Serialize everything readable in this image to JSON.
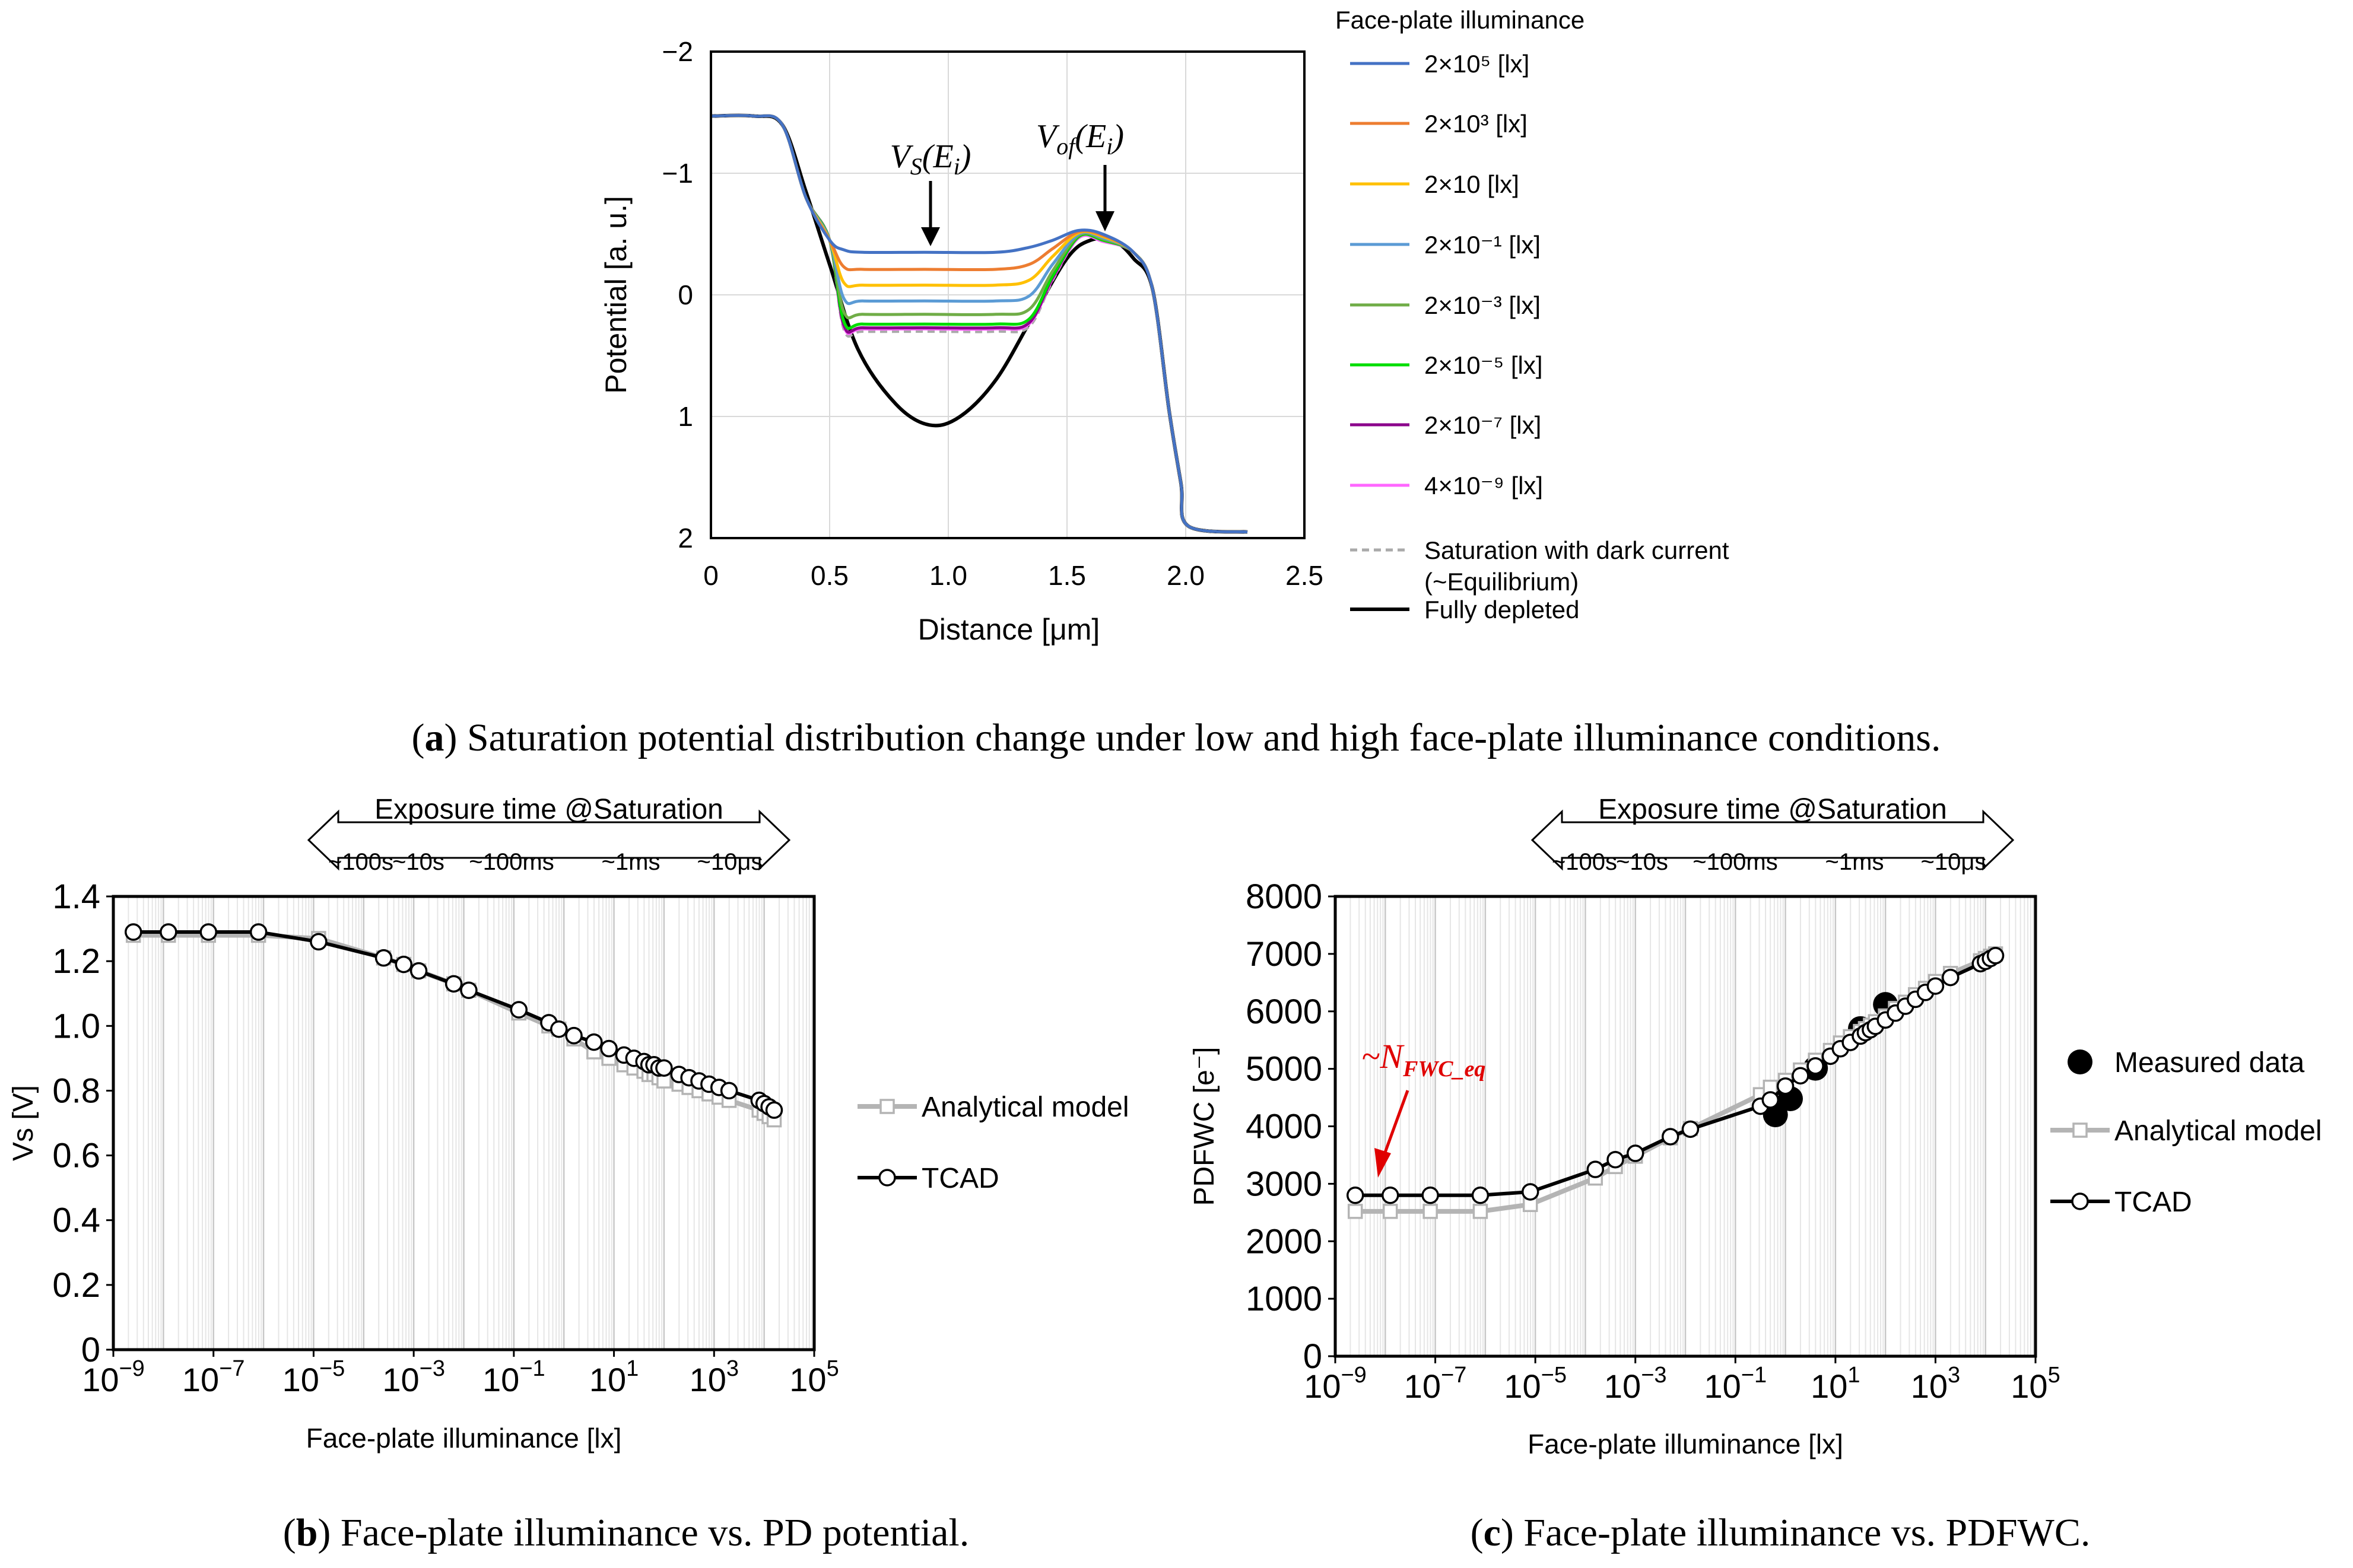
{
  "chart_data": [
    {
      "id": "a",
      "type": "line",
      "xlabel": "Distance [μm]",
      "ylabel": "Potential [a. u.]",
      "xlim": [
        0,
        2.5
      ],
      "ylim": [
        2,
        -2
      ],
      "xticks": [
        "0",
        "0.5",
        "1.0",
        "1.5",
        "2.0",
        "2.5"
      ],
      "yticks": [
        "−2",
        "−1",
        "0",
        "1",
        "2"
      ],
      "legend_title": "Face-plate illuminance",
      "annotations": {
        "vs": "V_S(E_i)",
        "vof": "V_of(E_i)"
      },
      "series": [
        {
          "name": "2×10⁵ [lx]",
          "color": "#4472c4",
          "plateau": -0.35,
          "peak": -0.53
        },
        {
          "name": "2×10³ [lx]",
          "color": "#ed7d31",
          "plateau": -0.21,
          "peak": -0.52
        },
        {
          "name": "2×10 [lx]",
          "color": "#ffc000",
          "plateau": -0.08,
          "peak": -0.51
        },
        {
          "name": "2×10⁻¹ [lx]",
          "color": "#5b9bd5",
          "plateau": 0.05,
          "peak": -0.5
        },
        {
          "name": "2×10⁻³ [lx]",
          "color": "#70ad47",
          "plateau": 0.16,
          "peak": -0.49
        },
        {
          "name": "2×10⁻⁵ [lx]",
          "color": "#00dd00",
          "plateau": 0.24,
          "peak": -0.48
        },
        {
          "name": "2×10⁻⁷ [lx]",
          "color": "#8b008b",
          "plateau": 0.27,
          "peak": -0.48
        },
        {
          "name": "4×10⁻⁹ [lx]",
          "color": "#ff66ff",
          "plateau": 0.28,
          "peak": -0.47
        },
        {
          "name": "Saturation with dark current",
          "name2": "(~Equilibrium)",
          "color": "#aaaaaa",
          "dashed": true,
          "plateau": 0.3,
          "peak": -0.47
        },
        {
          "name": "Fully depleted",
          "color": "#000000",
          "depleted": true
        }
      ],
      "caption_letter": "a",
      "caption_text": ") Saturation potential distribution change under low and high face-plate illuminance conditions."
    },
    {
      "id": "b",
      "type": "line",
      "xscale": "log",
      "xlabel": "Face-plate illuminance [lx]",
      "ylabel": "Vs [V]",
      "xlim_exp": [
        -9,
        5
      ],
      "ylim": [
        0,
        1.4
      ],
      "xticks": [
        {
          "base": "10",
          "exp": "−9"
        },
        {
          "base": "10",
          "exp": "−7"
        },
        {
          "base": "10",
          "exp": "−5"
        },
        {
          "base": "10",
          "exp": "−3"
        },
        {
          "base": "10",
          "exp": "−1"
        },
        {
          "base": "10",
          "exp": "1"
        },
        {
          "base": "10",
          "exp": "3"
        },
        {
          "base": "10",
          "exp": "5"
        }
      ],
      "yticks": [
        "0",
        "0.2",
        "0.4",
        "0.6",
        "0.8",
        "1.0",
        "1.2",
        "1.4"
      ],
      "exposure_label": "Exposure time @Saturation",
      "exposure_ticks": [
        "~100s",
        "~10s",
        "~100ms",
        "~1ms",
        "~10μs"
      ],
      "series": [
        {
          "name": "Analytical model",
          "color": "#b4b4b4",
          "marker": "square",
          "points": [
            [
              -8.6,
              1.28
            ],
            [
              -7.9,
              1.28
            ],
            [
              -7.1,
              1.28
            ],
            [
              -6.1,
              1.28
            ],
            [
              -4.9,
              1.27
            ],
            [
              -3.6,
              1.21
            ],
            [
              -3.2,
              1.19
            ],
            [
              -2.9,
              1.17
            ],
            [
              -2.2,
              1.13
            ],
            [
              -1.9,
              1.11
            ],
            [
              -0.9,
              1.04
            ],
            [
              -0.3,
              1.0
            ],
            [
              -0.1,
              0.99
            ],
            [
              0.2,
              0.96
            ],
            [
              0.6,
              0.92
            ],
            [
              0.9,
              0.9
            ],
            [
              1.2,
              0.88
            ],
            [
              1.4,
              0.87
            ],
            [
              1.6,
              0.86
            ],
            [
              1.7,
              0.85
            ],
            [
              1.8,
              0.85
            ],
            [
              1.9,
              0.84
            ],
            [
              2.0,
              0.83
            ],
            [
              2.3,
              0.82
            ],
            [
              2.5,
              0.81
            ],
            [
              2.7,
              0.8
            ],
            [
              2.9,
              0.79
            ],
            [
              3.1,
              0.78
            ],
            [
              3.3,
              0.77
            ],
            [
              3.9,
              0.74
            ],
            [
              4.0,
              0.73
            ],
            [
              4.1,
              0.72
            ],
            [
              4.2,
              0.71
            ]
          ]
        },
        {
          "name": "TCAD",
          "color": "#000000",
          "marker": "circle",
          "points": [
            [
              -8.6,
              1.29
            ],
            [
              -7.9,
              1.29
            ],
            [
              -7.1,
              1.29
            ],
            [
              -6.1,
              1.29
            ],
            [
              -4.9,
              1.26
            ],
            [
              -3.6,
              1.21
            ],
            [
              -3.2,
              1.19
            ],
            [
              -2.9,
              1.17
            ],
            [
              -2.2,
              1.13
            ],
            [
              -1.9,
              1.11
            ],
            [
              -0.9,
              1.05
            ],
            [
              -0.3,
              1.01
            ],
            [
              -0.1,
              0.99
            ],
            [
              0.2,
              0.97
            ],
            [
              0.6,
              0.95
            ],
            [
              0.9,
              0.93
            ],
            [
              1.2,
              0.91
            ],
            [
              1.4,
              0.9
            ],
            [
              1.6,
              0.89
            ],
            [
              1.7,
              0.88
            ],
            [
              1.8,
              0.88
            ],
            [
              1.9,
              0.87
            ],
            [
              2.0,
              0.87
            ],
            [
              2.3,
              0.85
            ],
            [
              2.5,
              0.84
            ],
            [
              2.7,
              0.83
            ],
            [
              2.9,
              0.82
            ],
            [
              3.1,
              0.81
            ],
            [
              3.3,
              0.8
            ],
            [
              3.9,
              0.77
            ],
            [
              4.0,
              0.76
            ],
            [
              4.1,
              0.75
            ],
            [
              4.2,
              0.74
            ]
          ]
        }
      ],
      "caption_letter": "b",
      "caption_text": ") Face-plate illuminance vs. PD potential."
    },
    {
      "id": "c",
      "type": "line",
      "xscale": "log",
      "xlabel": "Face-plate illuminance [lx]",
      "ylabel": "PDFWC [e⁻]",
      "xlim_exp": [
        -9,
        5
      ],
      "ylim": [
        0,
        8000
      ],
      "xticks": [
        {
          "base": "10",
          "exp": "−9"
        },
        {
          "base": "10",
          "exp": "−7"
        },
        {
          "base": "10",
          "exp": "−5"
        },
        {
          "base": "10",
          "exp": "−3"
        },
        {
          "base": "10",
          "exp": "−1"
        },
        {
          "base": "10",
          "exp": "1"
        },
        {
          "base": "10",
          "exp": "3"
        },
        {
          "base": "10",
          "exp": "5"
        }
      ],
      "yticks": [
        "0",
        "1000",
        "2000",
        "3000",
        "4000",
        "5000",
        "6000",
        "7000",
        "8000"
      ],
      "exposure_label": "Exposure time @Saturation",
      "exposure_ticks": [
        "~100s",
        "~10s",
        "~100ms",
        "~1ms",
        "~10μs"
      ],
      "annotation": {
        "prefix": "~N",
        "sub": "FWC_eq"
      },
      "series": [
        {
          "name": "Measured data",
          "color": "#000000",
          "marker": "filled-circle",
          "points": [
            [
              -0.2,
              4200
            ],
            [
              0.1,
              4480
            ],
            [
              0.6,
              5010
            ],
            [
              1.5,
              5700
            ],
            [
              2.0,
              6120
            ]
          ]
        },
        {
          "name": "Analytical model",
          "color": "#b4b4b4",
          "marker": "square",
          "points": [
            [
              -8.6,
              2520
            ],
            [
              -7.9,
              2520
            ],
            [
              -7.1,
              2520
            ],
            [
              -6.1,
              2520
            ],
            [
              -5.1,
              2640
            ],
            [
              -3.8,
              3100
            ],
            [
              -3.4,
              3300
            ],
            [
              -3.0,
              3480
            ],
            [
              -2.3,
              3800
            ],
            [
              -1.9,
              3960
            ],
            [
              -0.5,
              4550
            ],
            [
              -0.3,
              4680
            ],
            [
              0,
              4800
            ],
            [
              0.3,
              4980
            ],
            [
              0.6,
              5150
            ],
            [
              0.9,
              5320
            ],
            [
              1.1,
              5450
            ],
            [
              1.3,
              5560
            ],
            [
              1.5,
              5650
            ],
            [
              1.6,
              5700
            ],
            [
              1.7,
              5760
            ],
            [
              1.8,
              5820
            ],
            [
              2.0,
              5920
            ],
            [
              2.2,
              6050
            ],
            [
              2.4,
              6160
            ],
            [
              2.6,
              6290
            ],
            [
              2.8,
              6400
            ],
            [
              3.0,
              6520
            ],
            [
              3.3,
              6660
            ],
            [
              3.9,
              6880
            ],
            [
              4.0,
              6920
            ],
            [
              4.1,
              6960
            ],
            [
              4.2,
              7000
            ]
          ]
        },
        {
          "name": "TCAD",
          "color": "#000000",
          "marker": "circle",
          "points": [
            [
              -8.6,
              2800
            ],
            [
              -7.9,
              2800
            ],
            [
              -7.1,
              2800
            ],
            [
              -6.1,
              2800
            ],
            [
              -5.1,
              2860
            ],
            [
              -3.8,
              3250
            ],
            [
              -3.4,
              3420
            ],
            [
              -3.0,
              3530
            ],
            [
              -2.3,
              3820
            ],
            [
              -1.9,
              3950
            ],
            [
              -0.5,
              4350
            ],
            [
              -0.3,
              4460
            ],
            [
              0,
              4700
            ],
            [
              0.3,
              4880
            ],
            [
              0.6,
              5050
            ],
            [
              0.9,
              5220
            ],
            [
              1.1,
              5350
            ],
            [
              1.3,
              5460
            ],
            [
              1.5,
              5570
            ],
            [
              1.6,
              5630
            ],
            [
              1.7,
              5680
            ],
            [
              1.8,
              5740
            ],
            [
              2.0,
              5850
            ],
            [
              2.2,
              5970
            ],
            [
              2.4,
              6090
            ],
            [
              2.6,
              6210
            ],
            [
              2.8,
              6330
            ],
            [
              3.0,
              6440
            ],
            [
              3.3,
              6590
            ],
            [
              3.9,
              6830
            ],
            [
              4.0,
              6870
            ],
            [
              4.1,
              6920
            ],
            [
              4.2,
              6970
            ]
          ]
        }
      ],
      "caption_letter": "c",
      "caption_text": ") Face-plate illuminance vs. PDFWC."
    }
  ]
}
